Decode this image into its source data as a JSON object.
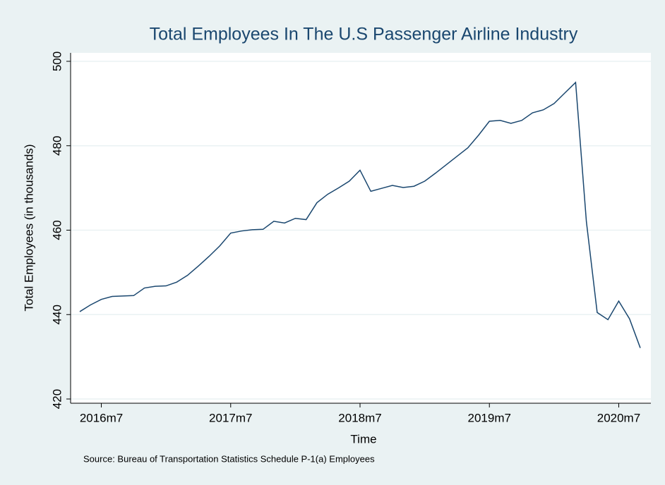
{
  "chart_data": {
    "type": "line",
    "title": "Total Employees In The U.S Passenger Airline Industry",
    "xlabel": "Time",
    "ylabel": "Total Employees (in thousands)",
    "source": "Source: Bureau of Transportation Statistics Schedule P-1(a) Employees",
    "categories": [
      null,
      null,
      "2016m7",
      null,
      null,
      null,
      null,
      null,
      null,
      null,
      null,
      null,
      null,
      null,
      "2017m7",
      null,
      null,
      null,
      null,
      null,
      null,
      null,
      null,
      null,
      null,
      null,
      "2018m7",
      null,
      null,
      null,
      null,
      null,
      null,
      null,
      null,
      null,
      null,
      null,
      "2019m7",
      null,
      null,
      null,
      null,
      null,
      null,
      null,
      null,
      null,
      null,
      null,
      "2020m7",
      null,
      null
    ],
    "series": [
      {
        "color": "#1a476f",
        "values": [
          440.7,
          442.3,
          443.6,
          444.3,
          444.4,
          444.5,
          446.3,
          446.7,
          446.8,
          447.7,
          449.3,
          451.5,
          453.8,
          456.3,
          459.3,
          459.8,
          460.1,
          460.2,
          462.1,
          461.7,
          462.8,
          462.5,
          466.5,
          468.5,
          470.0,
          471.6,
          474.2,
          469.2,
          469.9,
          470.6,
          470.1,
          470.4,
          471.6,
          473.5,
          475.5,
          477.5,
          479.5,
          482.5,
          485.8,
          486.0,
          485.3,
          486.0,
          487.8,
          488.5,
          490.0,
          492.5,
          495.0,
          462.0,
          440.5,
          438.8,
          443.2,
          439.0,
          432.1
        ]
      }
    ],
    "ylim": [
      419,
      502
    ],
    "yticks": [
      420,
      440,
      460,
      480,
      500
    ],
    "grid": true
  }
}
